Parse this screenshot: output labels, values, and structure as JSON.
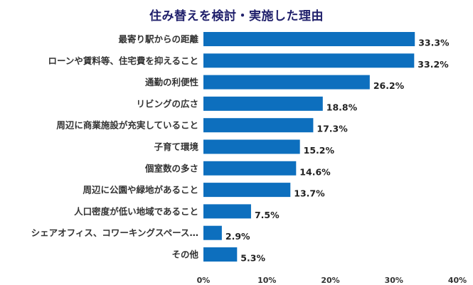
{
  "chart_data": {
    "type": "bar",
    "orientation": "horizontal",
    "title": "住み替えを検討・実施した理由",
    "categories": [
      "最寄り駅からの距離",
      "ローンや賃料等、住宅費を抑えること",
      "通勤の利便性",
      "リビングの広さ",
      "周辺に商業施設が充実していること",
      "子育て環境",
      "個室数の多さ",
      "周辺に公園や緑地があること",
      "人口密度が低い地域であること",
      "シェアオフィス、コワーキングスペース…",
      "その他"
    ],
    "values": [
      33.3,
      33.2,
      26.2,
      18.8,
      17.3,
      15.2,
      14.6,
      13.7,
      7.5,
      2.9,
      5.3
    ],
    "value_labels": [
      "33.3%",
      "33.2%",
      "26.2%",
      "18.8%",
      "17.3%",
      "15.2%",
      "14.6%",
      "13.7%",
      "7.5%",
      "2.9%",
      "5.3%"
    ],
    "xlim": [
      0,
      40
    ],
    "x_ticks": [
      0,
      10,
      20,
      30,
      40
    ],
    "x_tick_labels": [
      "0%",
      "10%",
      "20%",
      "30%",
      "40%"
    ],
    "grid": false,
    "legend": "none",
    "bar_color": "#0d6fbe",
    "title_color": "#1f1f6b"
  }
}
